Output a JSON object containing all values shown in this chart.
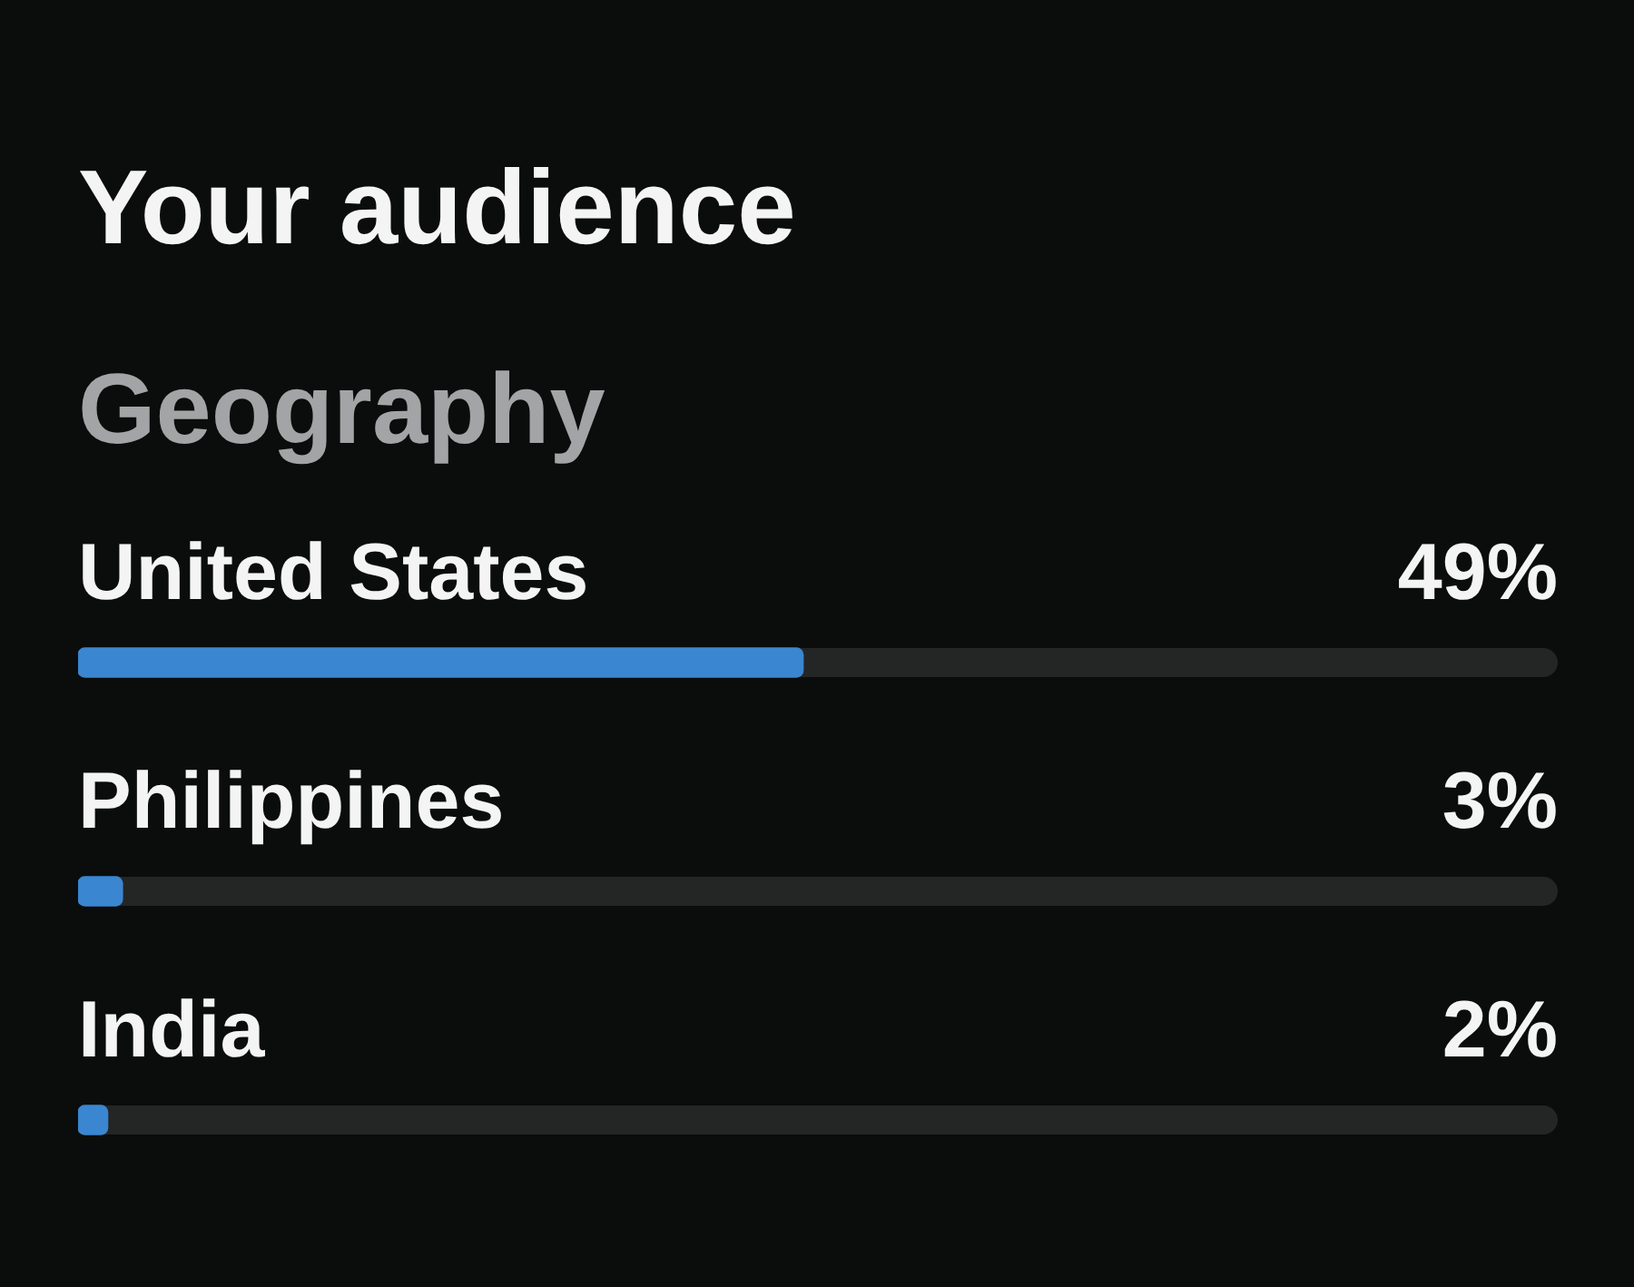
{
  "chart_data": {
    "type": "bar",
    "title": "Your audience",
    "subtitle": "Geography",
    "orientation": "horizontal",
    "categories": [
      "United States",
      "Philippines",
      "India"
    ],
    "values": [
      49,
      3,
      2
    ],
    "color": "#3a86d0",
    "value_labels": [
      "49%",
      "3%",
      "2%"
    ],
    "xlim": [
      0,
      100
    ],
    "tick_labels": "y"
  }
}
